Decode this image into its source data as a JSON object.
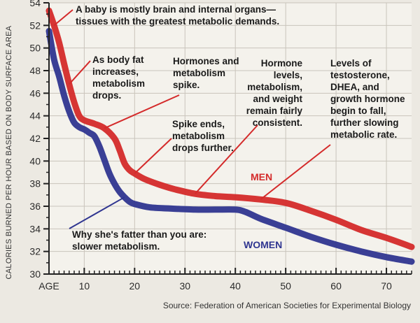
{
  "chart_data": {
    "type": "line",
    "title": "",
    "ylabel": "CALORIES BURNED PER HOUR BASED ON BODY SURFACE AREA",
    "xlabel": "AGE",
    "xlim": [
      3,
      75
    ],
    "ylim": [
      30,
      54
    ],
    "grid": true,
    "x_ticks": [
      10,
      20,
      30,
      40,
      50,
      60,
      70
    ],
    "y_ticks": [
      30,
      32,
      34,
      36,
      38,
      40,
      42,
      44,
      46,
      48,
      50,
      52,
      54
    ],
    "series": [
      {
        "name": "MEN",
        "color": "#d42a2a",
        "points": [
          [
            3,
            53.3
          ],
          [
            4,
            52.0
          ],
          [
            5,
            50.5
          ],
          [
            6,
            48.6
          ],
          [
            7,
            46.8
          ],
          [
            8,
            45.2
          ],
          [
            9,
            44.0
          ],
          [
            10,
            43.6
          ],
          [
            12,
            43.3
          ],
          [
            14,
            42.9
          ],
          [
            16,
            42.0
          ],
          [
            17,
            41.0
          ],
          [
            18,
            39.8
          ],
          [
            19,
            39.2
          ],
          [
            20,
            38.9
          ],
          [
            22,
            38.4
          ],
          [
            25,
            37.9
          ],
          [
            28,
            37.5
          ],
          [
            32,
            37.1
          ],
          [
            36,
            36.9
          ],
          [
            40,
            36.8
          ],
          [
            45,
            36.6
          ],
          [
            50,
            36.3
          ],
          [
            55,
            35.6
          ],
          [
            60,
            34.8
          ],
          [
            65,
            33.9
          ],
          [
            70,
            33.2
          ],
          [
            75,
            32.4
          ]
        ]
      },
      {
        "name": "WOMEN",
        "color": "#2f3590",
        "points": [
          [
            3,
            51.5
          ],
          [
            4,
            49.0
          ],
          [
            5,
            47.5
          ],
          [
            6,
            45.8
          ],
          [
            7,
            44.4
          ],
          [
            8,
            43.4
          ],
          [
            9,
            43.0
          ],
          [
            10,
            42.8
          ],
          [
            11,
            42.5
          ],
          [
            12,
            42.2
          ],
          [
            13,
            41.3
          ],
          [
            14,
            40.1
          ],
          [
            15,
            38.9
          ],
          [
            16,
            38.0
          ],
          [
            17,
            37.3
          ],
          [
            18,
            36.8
          ],
          [
            19,
            36.4
          ],
          [
            20,
            36.2
          ],
          [
            23,
            35.9
          ],
          [
            27,
            35.8
          ],
          [
            32,
            35.7
          ],
          [
            36,
            35.7
          ],
          [
            40,
            35.7
          ],
          [
            42,
            35.5
          ],
          [
            45,
            34.9
          ],
          [
            50,
            34.1
          ],
          [
            55,
            33.3
          ],
          [
            60,
            32.6
          ],
          [
            65,
            32.0
          ],
          [
            70,
            31.5
          ],
          [
            75,
            31.1
          ]
        ]
      }
    ],
    "annotations": [
      {
        "lines": [
          "A baby is mostly brain and internal organs—",
          "tissues with the greatest metabolic demands."
        ]
      },
      {
        "lines": [
          "As body fat",
          "increases,",
          "metabolism",
          "drops."
        ]
      },
      {
        "lines": [
          "Hormones and",
          "metabolism",
          "spike."
        ]
      },
      {
        "lines": [
          "Hormone",
          "levels,",
          "metabolism,",
          "and weight",
          "remain fairly",
          "consistent."
        ]
      },
      {
        "lines": [
          "Levels of",
          "testosterone,",
          "DHEA, and",
          "growth hormone",
          "begin to fall,",
          "further slowing",
          "metabolic rate."
        ]
      },
      {
        "lines": [
          "Spike ends,",
          "metabolism",
          "drops further."
        ]
      },
      {
        "lines": [
          "Why she's fatter than you are:",
          "slower metabolism."
        ]
      }
    ],
    "source": "Source: Federation of American Societies for Experimental Biology"
  }
}
